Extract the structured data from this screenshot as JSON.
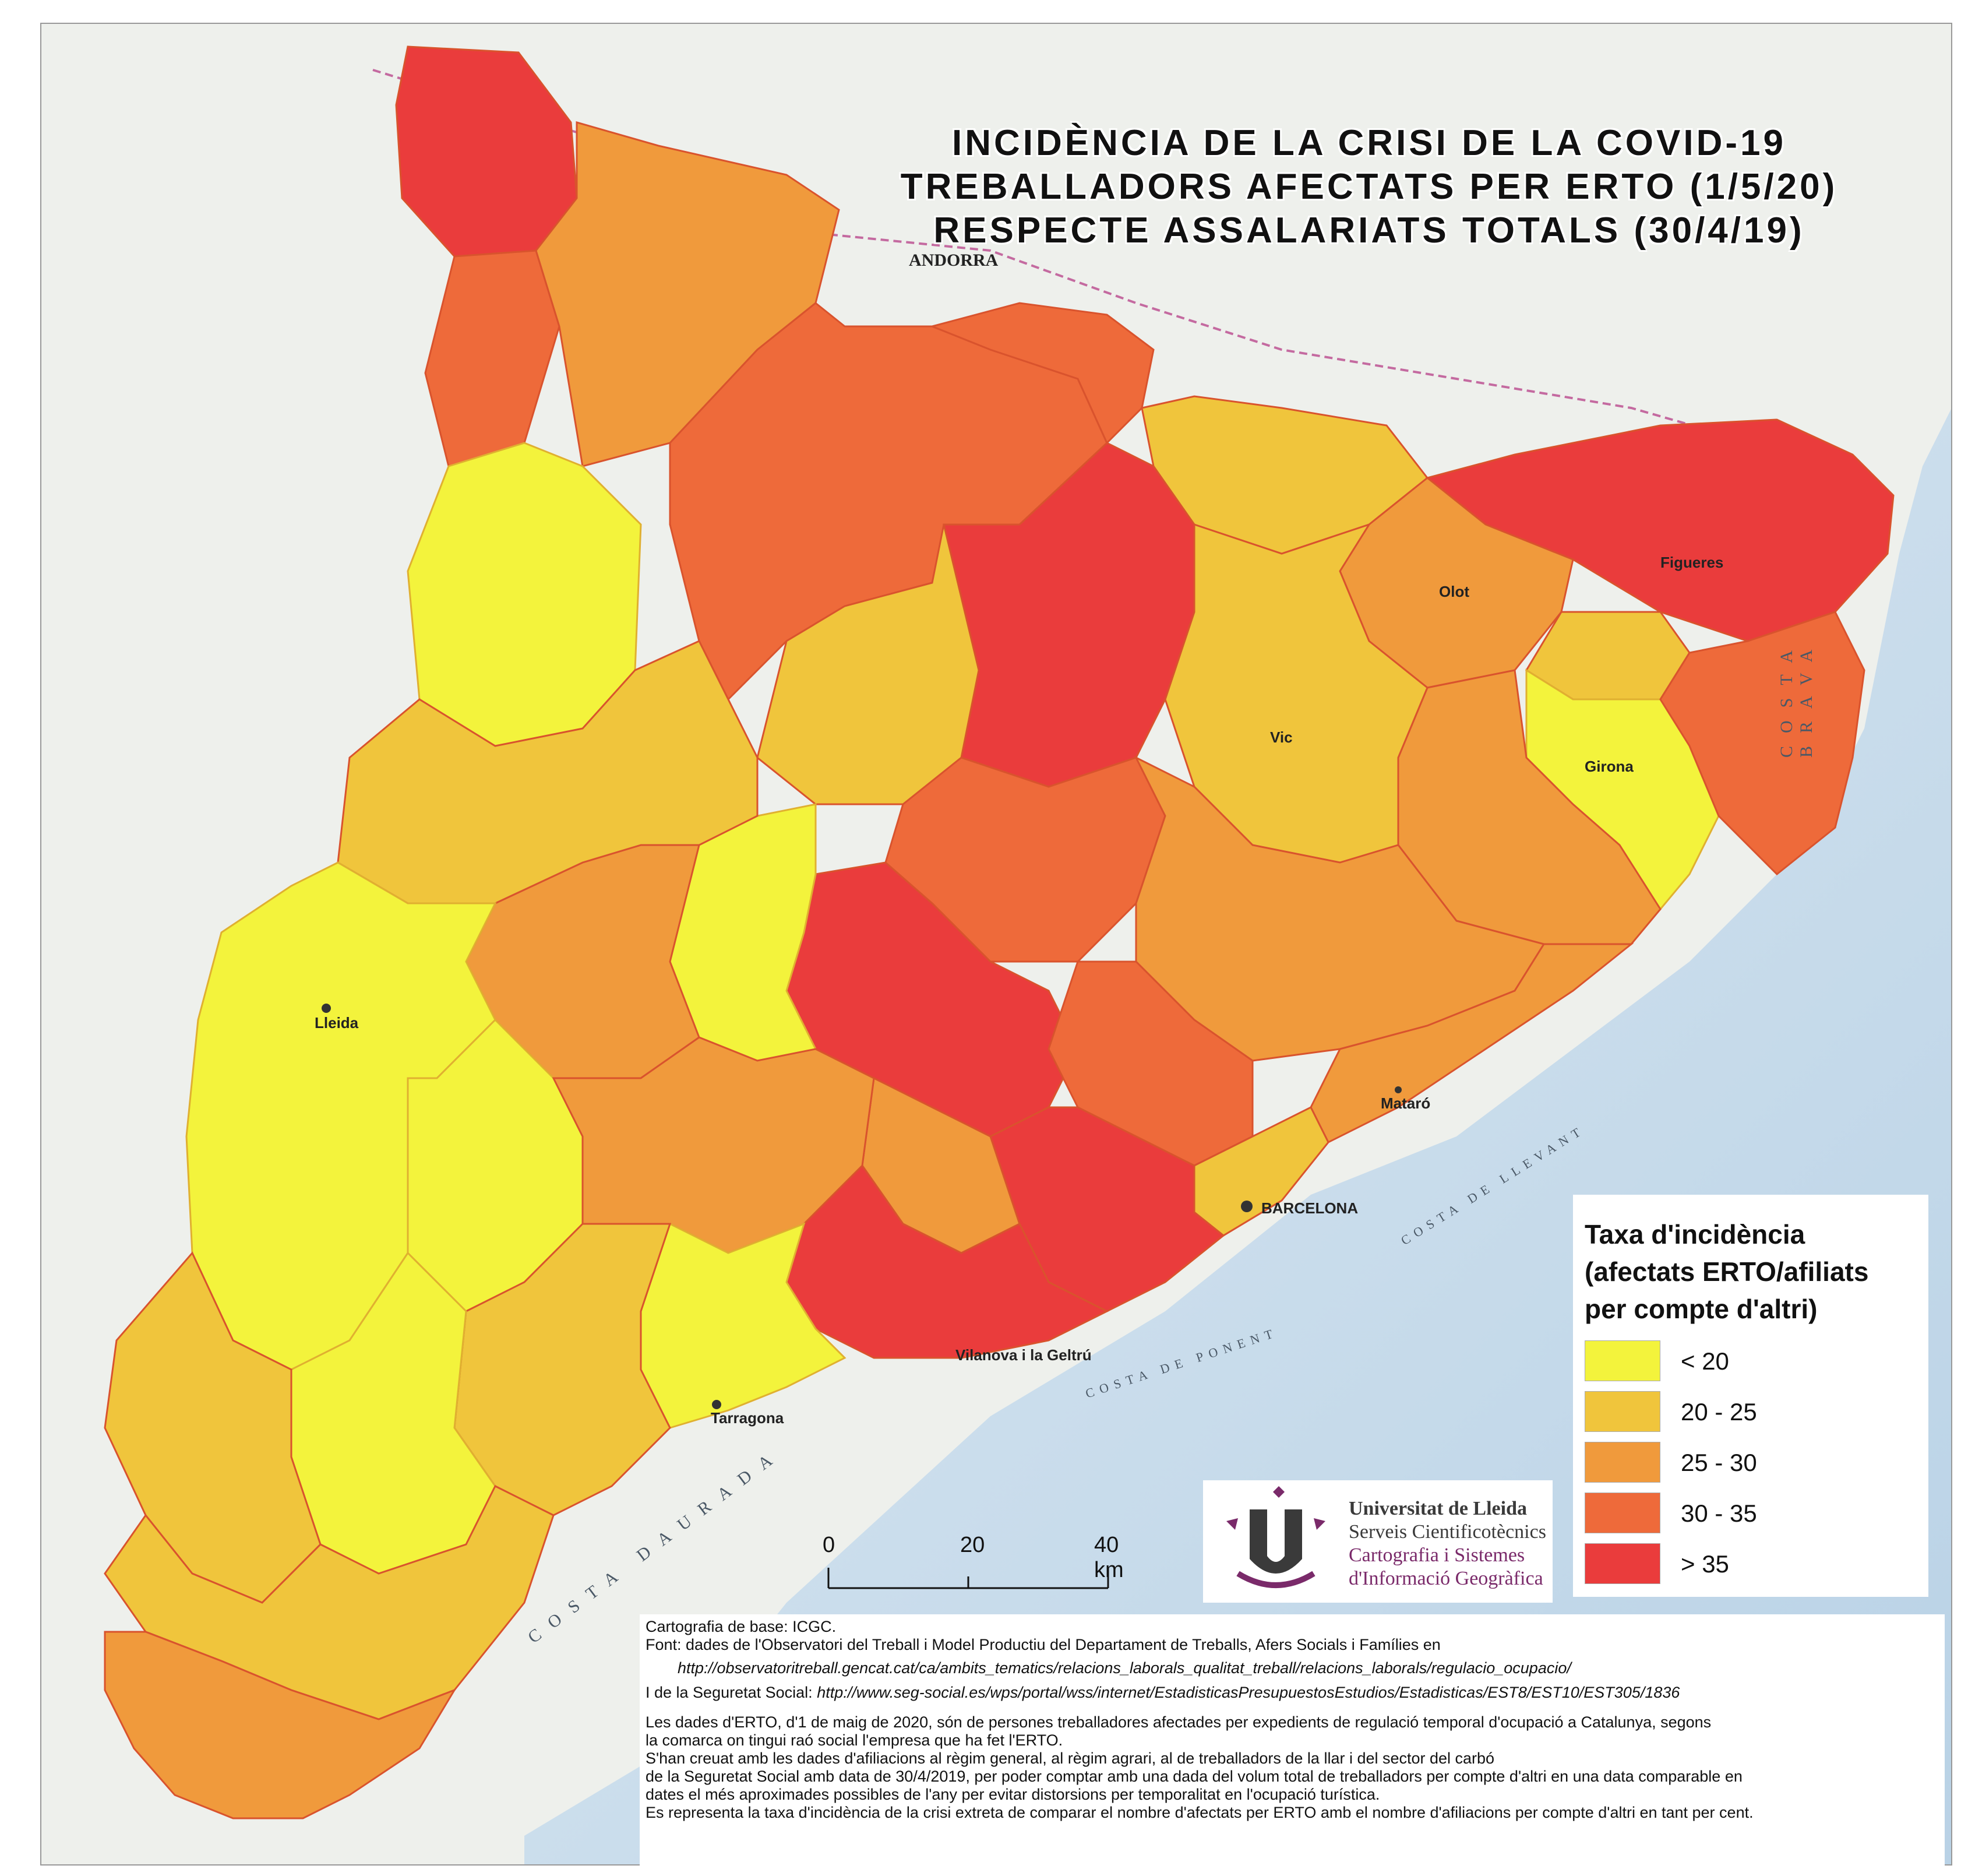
{
  "title": {
    "line1": "INCIDÈNCIA DE LA CRISI DE LA COVID-19",
    "line2": "TREBALLADORS AFECTATS PER ERTO (1/5/20)",
    "line3": "RESPECTE ASSALARIATS TOTALS (30/4/19)"
  },
  "legend": {
    "title_line1": "Taxa d'incidència",
    "title_line2": "(afectats ERTO/afiliats",
    "title_line3": "per compte d'altri)",
    "classes": [
      {
        "label": "< 20",
        "color": "#f3f33c"
      },
      {
        "label": "20 - 25",
        "color": "#f0c53c"
      },
      {
        "label": "25 - 30",
        "color": "#f09a3c"
      },
      {
        "label": "30 - 35",
        "color": "#ee6a3a"
      },
      {
        "label": "> 35",
        "color": "#ea3c3c"
      }
    ]
  },
  "scale": {
    "tick0": "0",
    "tick1": "20",
    "tick2": "40 km"
  },
  "logo": {
    "line1": "Universitat de Lleida",
    "line2": "Serveis Cientificotècnics",
    "line3": "Cartografia i Sistemes",
    "line4": "d'Informació Geogràfica",
    "color_dark": "#3a3a3a",
    "color_accent": "#7a2a6a"
  },
  "places": {
    "andorra": "ANDORRA",
    "barcelona": "BARCELONA",
    "tarragona": "Tarragona",
    "lleida": "Lleida",
    "mataro": "Mataró",
    "vilanova": "Vilanova i la Geltrú",
    "figueres": "Figueres",
    "girona": "Girona",
    "olot": "Olot",
    "vic": "Vic"
  },
  "coast_labels": {
    "brava": "COSTA BRAVA",
    "daurada": "COSTA DAURADA",
    "levant": "COSTA DE LLEVANT",
    "ponent": "COSTA DE PONENT"
  },
  "notes": {
    "base": "Cartografia de base: ICGC.",
    "font": "Font: dades de l'Observatori del Treball i Model Productiu del Departament de Treballs, Afers Socials i Famílies en",
    "url1": "http://observatoritreball.gencat.cat/ca/ambits_tematics/relacions_laborals_qualitat_treball/relacions_laborals/regulacio_ocupacio/",
    "ss_prefix": "I de la Seguretat Social: ",
    "ss_url": "http://www.seg-social.es/wps/portal/wss/internet/EstadisticasPresupuestosEstudios/Estadisticas/EST8/EST10/EST305/1836",
    "p1": "Les dades d'ERTO, d'1 de maig de 2020, són de persones treballadores afectades per expedients de regulació temporal d'ocupació a Catalunya, segons",
    "p2": "la comarca on tingui raó social l'empresa que ha fet l'ERTO.",
    "p3": "S'han creuat amb les dades d'afiliacions al règim general, al règim agrari, al de treballadors de la llar i del sector del carbó",
    "p4": "de la Seguretat Social amb data de 30/4/2019, per poder comptar amb una dada del volum total de treballadors per compte d'altri en una data comparable en",
    "p5": "dates el més aproximades possibles de l'any per evitar distorsions per temporalitat en l'ocupació turística.",
    "p6": "Es representa la taxa d'incidència de la crisi extreta de comparar el nombre d'afectats per ERTO amb el nombre d'afiliacions per compte d'altri en tant per cent."
  }
}
